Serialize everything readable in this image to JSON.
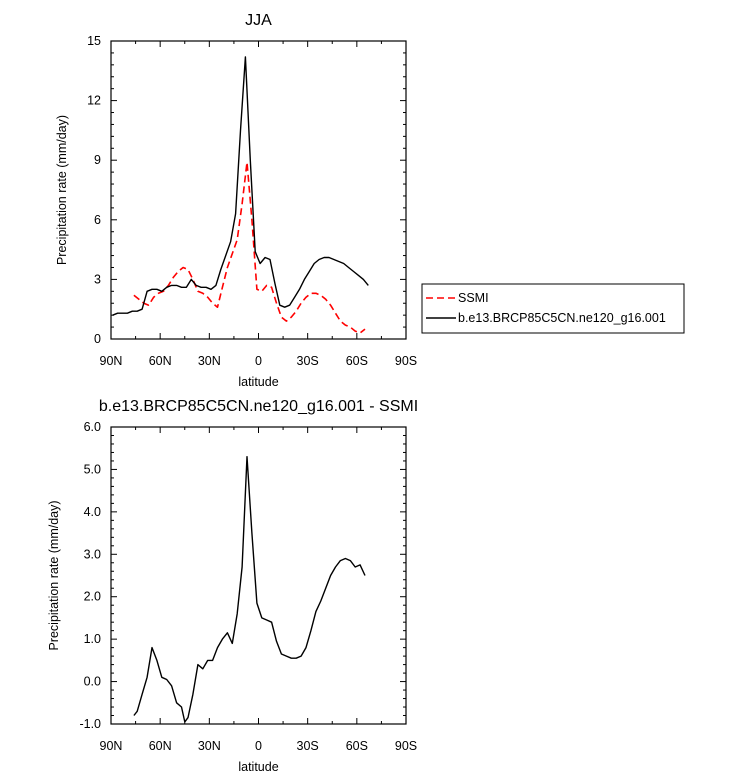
{
  "chart_data": [
    {
      "type": "line",
      "title": "JJA",
      "xlabel": "latitude",
      "ylabel": "Precipitation rate (mm/day)",
      "x_reversed": true,
      "xlim": [
        90,
        -90
      ],
      "ylim": [
        0,
        15
      ],
      "xticks": [
        90,
        60,
        30,
        0,
        -30,
        -60,
        -90
      ],
      "xtick_labels": [
        "90N",
        "60N",
        "30N",
        "0",
        "30S",
        "60S",
        "90S"
      ],
      "yticks": [
        0,
        3,
        6,
        9,
        12,
        15
      ],
      "ytick_labels": [
        "0",
        "3",
        "6",
        "9",
        "12",
        "15"
      ],
      "legend": "outside-right",
      "series": [
        {
          "name": "SSMI",
          "color": "#ff0000",
          "dash": "dashed",
          "x": [
            76,
            73,
            70,
            67,
            64,
            61,
            58,
            55,
            52,
            49,
            46,
            43,
            40,
            37,
            34,
            31,
            28,
            25,
            22,
            19,
            16,
            13,
            10,
            7,
            4,
            1,
            -2,
            -5,
            -8,
            -11,
            -14,
            -17,
            -20,
            -23,
            -26,
            -29,
            -32,
            -35,
            -38,
            -41,
            -44,
            -47,
            -50,
            -53,
            -56,
            -59,
            -62,
            -65
          ],
          "y": [
            2.2,
            2.0,
            1.8,
            1.7,
            2.1,
            2.3,
            2.4,
            2.7,
            3.1,
            3.4,
            3.6,
            3.5,
            3.0,
            2.4,
            2.3,
            2.1,
            1.8,
            1.6,
            2.6,
            3.6,
            4.3,
            5.0,
            6.8,
            8.9,
            6.0,
            2.5,
            2.4,
            2.7,
            2.6,
            1.8,
            1.1,
            0.9,
            1.1,
            1.4,
            1.8,
            2.1,
            2.3,
            2.3,
            2.2,
            2.0,
            1.7,
            1.3,
            0.9,
            0.7,
            0.6,
            0.4,
            0.3,
            0.5
          ]
        },
        {
          "name": "b.e13.BRCP85C5CN.ne120_g16.001",
          "color": "#000000",
          "dash": "solid",
          "x": [
            89,
            86,
            83,
            80,
            77,
            74,
            71,
            68,
            65,
            62,
            59,
            56,
            53,
            50,
            47,
            44,
            41,
            38,
            35,
            32,
            29,
            26,
            23,
            20,
            17,
            14,
            11,
            8,
            5,
            2,
            -1,
            -4,
            -7,
            -10,
            -13,
            -16,
            -19,
            -22,
            -25,
            -28,
            -31,
            -34,
            -37,
            -40,
            -43,
            -46,
            -49,
            -52,
            -55,
            -58,
            -61,
            -64,
            -67
          ],
          "y": [
            1.2,
            1.3,
            1.3,
            1.3,
            1.4,
            1.4,
            1.5,
            2.4,
            2.5,
            2.5,
            2.4,
            2.6,
            2.7,
            2.7,
            2.6,
            2.6,
            3.0,
            2.7,
            2.6,
            2.6,
            2.5,
            2.7,
            3.5,
            4.2,
            4.9,
            6.3,
            10.5,
            14.2,
            9.0,
            4.4,
            3.8,
            4.1,
            4.0,
            2.8,
            1.7,
            1.6,
            1.7,
            2.1,
            2.5,
            3.0,
            3.4,
            3.8,
            4.0,
            4.1,
            4.1,
            4.0,
            3.9,
            3.8,
            3.6,
            3.4,
            3.2,
            3.0,
            2.7
          ]
        }
      ]
    },
    {
      "type": "line",
      "title": "b.e13.BRCP85C5CN.ne120_g16.001 - SSMI",
      "xlabel": "latitude",
      "ylabel": "Precipitation rate (mm/day)",
      "x_reversed": true,
      "xlim": [
        90,
        -90
      ],
      "ylim": [
        -1.0,
        6.0
      ],
      "xticks": [
        90,
        60,
        30,
        0,
        -30,
        -60,
        -90
      ],
      "xtick_labels": [
        "90N",
        "60N",
        "30N",
        "0",
        "30S",
        "60S",
        "90S"
      ],
      "yticks": [
        -1.0,
        0.0,
        1.0,
        2.0,
        3.0,
        4.0,
        5.0,
        6.0
      ],
      "ytick_labels": [
        "-1.0",
        "0.0",
        "1.0",
        "2.0",
        "3.0",
        "4.0",
        "5.0",
        "6.0"
      ],
      "series": [
        {
          "name": "",
          "color": "#000000",
          "dash": "solid",
          "x": [
            76,
            74,
            71,
            68,
            65,
            62,
            59,
            56,
            53,
            50,
            47,
            45,
            43,
            40,
            37,
            34,
            31,
            28,
            25,
            22,
            19,
            16,
            13,
            10,
            7,
            4,
            1,
            -2,
            -5,
            -8,
            -11,
            -14,
            -17,
            -20,
            -23,
            -26,
            -29,
            -32,
            -35,
            -38,
            -41,
            -44,
            -47,
            -50,
            -53,
            -56,
            -59,
            -62,
            -65
          ],
          "y": [
            -0.8,
            -0.7,
            -0.3,
            0.1,
            0.8,
            0.5,
            0.1,
            0.05,
            -0.1,
            -0.5,
            -0.6,
            -0.95,
            -0.85,
            -0.3,
            0.4,
            0.3,
            0.5,
            0.5,
            0.8,
            1.0,
            1.15,
            0.9,
            1.6,
            2.7,
            5.3,
            3.5,
            1.85,
            1.5,
            1.45,
            1.4,
            0.95,
            0.65,
            0.6,
            0.55,
            0.55,
            0.6,
            0.8,
            1.2,
            1.65,
            1.9,
            2.2,
            2.5,
            2.7,
            2.85,
            2.9,
            2.85,
            2.7,
            2.75,
            2.5
          ]
        }
      ]
    }
  ]
}
